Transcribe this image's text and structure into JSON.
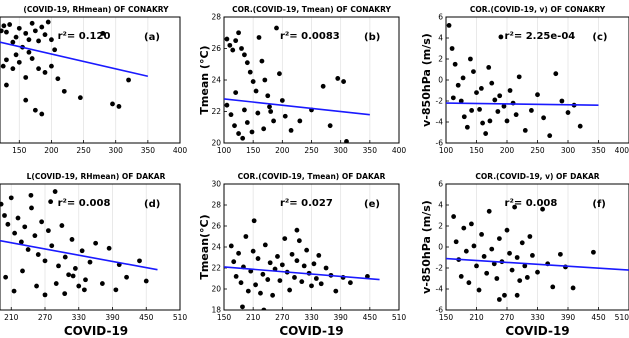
{
  "colors": {
    "points": "#000000",
    "fit_line": "#1a1aff",
    "frame": "#000000"
  },
  "chart_data": [
    {
      "id": "a",
      "type": "scatter",
      "panel_label": "(a)",
      "title": "(COVID-19, RHmean) OF CONAKRY",
      "annotation": "r²= 0.120",
      "xlabel": "",
      "ylabel": "",
      "xlim": [
        120,
        400
      ],
      "ylim": [
        0,
        10
      ],
      "xticks": [
        150,
        200,
        250,
        300,
        350,
        400
      ],
      "yticks": [],
      "points": [
        [
          122,
          8.9
        ],
        [
          126,
          9.3
        ],
        [
          130,
          8.8
        ],
        [
          135,
          9.4
        ],
        [
          140,
          8.0
        ],
        [
          145,
          8.4
        ],
        [
          150,
          9.1
        ],
        [
          155,
          7.6
        ],
        [
          160,
          8.7
        ],
        [
          165,
          8.2
        ],
        [
          170,
          9.5
        ],
        [
          175,
          8.9
        ],
        [
          180,
          8.1
        ],
        [
          185,
          9.2
        ],
        [
          190,
          8.6
        ],
        [
          195,
          9.6
        ],
        [
          200,
          8.2
        ],
        [
          205,
          7.4
        ],
        [
          125,
          6.1
        ],
        [
          130,
          6.6
        ],
        [
          140,
          5.9
        ],
        [
          150,
          6.4
        ],
        [
          160,
          5.2
        ],
        [
          170,
          6.7
        ],
        [
          180,
          5.9
        ],
        [
          190,
          5.6
        ],
        [
          200,
          6.1
        ],
        [
          210,
          5.1
        ],
        [
          220,
          4.1
        ],
        [
          245,
          3.6
        ],
        [
          280,
          8.7
        ],
        [
          295,
          3.1
        ],
        [
          305,
          2.9
        ],
        [
          160,
          3.4
        ],
        [
          185,
          2.3
        ],
        [
          175,
          2.6
        ],
        [
          320,
          5.0
        ],
        [
          130,
          4.6
        ],
        [
          145,
          7.0
        ],
        [
          165,
          7.2
        ]
      ],
      "fit_line": [
        [
          120,
          8.0
        ],
        [
          350,
          5.3
        ]
      ]
    },
    {
      "id": "b",
      "type": "scatter",
      "panel_label": "(b)",
      "title": "COR.(COVID-19, Tmean) OF CONAKRY",
      "annotation": "r²= 0.0083",
      "xlabel": "",
      "ylabel": "Tmean (°C)",
      "xlim": [
        100,
        400
      ],
      "ylim": [
        20,
        28
      ],
      "xticks": [
        100,
        150,
        200,
        250,
        300,
        350,
        400
      ],
      "yticks": [
        20,
        22,
        24,
        26,
        28
      ],
      "points": [
        [
          105,
          26.6
        ],
        [
          110,
          26.2
        ],
        [
          115,
          25.9
        ],
        [
          120,
          26.5
        ],
        [
          125,
          27.0
        ],
        [
          130,
          26.0
        ],
        [
          135,
          25.6
        ],
        [
          140,
          25.1
        ],
        [
          145,
          24.5
        ],
        [
          150,
          23.9
        ],
        [
          155,
          23.3
        ],
        [
          160,
          26.7
        ],
        [
          165,
          25.2
        ],
        [
          170,
          24.0
        ],
        [
          175,
          23.0
        ],
        [
          180,
          22.0
        ],
        [
          185,
          21.4
        ],
        [
          190,
          27.3
        ],
        [
          195,
          24.4
        ],
        [
          200,
          22.7
        ],
        [
          105,
          22.4
        ],
        [
          112,
          21.8
        ],
        [
          118,
          21.1
        ],
        [
          125,
          20.6
        ],
        [
          132,
          20.3
        ],
        [
          140,
          21.3
        ],
        [
          148,
          20.7
        ],
        [
          158,
          21.9
        ],
        [
          168,
          20.9
        ],
        [
          178,
          22.3
        ],
        [
          205,
          21.7
        ],
        [
          215,
          20.8
        ],
        [
          230,
          21.4
        ],
        [
          250,
          22.1
        ],
        [
          270,
          23.6
        ],
        [
          282,
          21.1
        ],
        [
          295,
          24.1
        ],
        [
          305,
          23.9
        ],
        [
          310,
          20.1
        ],
        [
          120,
          23.2
        ],
        [
          135,
          22.1
        ]
      ],
      "fit_line": [
        [
          100,
          22.8
        ],
        [
          350,
          21.8
        ]
      ]
    },
    {
      "id": "c",
      "type": "scatter",
      "panel_label": "(c)",
      "title": "COR.(COVID-19, v) OF CONAKRY",
      "annotation": "r²= 2.25e-04",
      "xlabel": "",
      "ylabel": "v-850hPa (m/s)",
      "xlim": [
        100,
        400
      ],
      "ylim": [
        -6,
        6
      ],
      "xticks": [
        100,
        150,
        200,
        250,
        300,
        350,
        400
      ],
      "yticks": [
        -6,
        -4,
        -2,
        0,
        2,
        4,
        6
      ],
      "points": [
        [
          105,
          5.2
        ],
        [
          110,
          3.0
        ],
        [
          115,
          1.5
        ],
        [
          120,
          -0.5
        ],
        [
          125,
          -2.0
        ],
        [
          130,
          -3.5
        ],
        [
          135,
          -4.5
        ],
        [
          140,
          2.0
        ],
        [
          145,
          0.8
        ],
        [
          150,
          -1.2
        ],
        [
          155,
          -2.8
        ],
        [
          160,
          -4.1
        ],
        [
          165,
          -5.1
        ],
        [
          170,
          1.2
        ],
        [
          175,
          -0.3
        ],
        [
          180,
          -1.9
        ],
        [
          185,
          -3.0
        ],
        [
          190,
          4.1
        ],
        [
          195,
          -2.5
        ],
        [
          200,
          -3.9
        ],
        [
          205,
          -1.0
        ],
        [
          210,
          -2.2
        ],
        [
          215,
          -3.3
        ],
        [
          220,
          0.3
        ],
        [
          230,
          -4.8
        ],
        [
          240,
          -2.9
        ],
        [
          250,
          -1.4
        ],
        [
          260,
          -3.6
        ],
        [
          270,
          -5.3
        ],
        [
          280,
          0.6
        ],
        [
          290,
          -2.0
        ],
        [
          300,
          -3.1
        ],
        [
          310,
          -2.4
        ],
        [
          320,
          -4.4
        ],
        [
          112,
          -1.7
        ],
        [
          128,
          0.2
        ],
        [
          142,
          -2.9
        ],
        [
          158,
          -0.8
        ],
        [
          172,
          -3.9
        ],
        [
          188,
          -1.5
        ]
      ],
      "fit_line": [
        [
          100,
          -2.2
        ],
        [
          350,
          -2.4
        ]
      ]
    },
    {
      "id": "d",
      "type": "scatter",
      "panel_label": "(d)",
      "title": "L(COVID-19, RHmean) OF DAKAR",
      "annotation": "r²= 0.008",
      "xlabel": "COVID-19",
      "ylabel": "",
      "xlim": [
        190,
        510
      ],
      "ylim": [
        0,
        10
      ],
      "xticks": [
        210,
        270,
        330,
        390,
        450,
        510
      ],
      "yticks": [],
      "points": [
        [
          192,
          8.4
        ],
        [
          198,
          7.5
        ],
        [
          204,
          6.8
        ],
        [
          210,
          8.9
        ],
        [
          216,
          6.1
        ],
        [
          222,
          7.3
        ],
        [
          228,
          5.4
        ],
        [
          234,
          6.6
        ],
        [
          240,
          4.8
        ],
        [
          246,
          8.1
        ],
        [
          252,
          5.9
        ],
        [
          258,
          4.4
        ],
        [
          264,
          7.0
        ],
        [
          270,
          3.9
        ],
        [
          276,
          6.3
        ],
        [
          282,
          5.1
        ],
        [
          288,
          9.4
        ],
        [
          294,
          3.5
        ],
        [
          300,
          6.7
        ],
        [
          306,
          4.2
        ],
        [
          312,
          2.8
        ],
        [
          318,
          5.6
        ],
        [
          324,
          3.3
        ],
        [
          330,
          1.9
        ],
        [
          336,
          4.7
        ],
        [
          342,
          2.4
        ],
        [
          350,
          3.8
        ],
        [
          360,
          5.3
        ],
        [
          372,
          2.1
        ],
        [
          384,
          4.9
        ],
        [
          396,
          1.6
        ],
        [
          402,
          3.6
        ],
        [
          415,
          2.6
        ],
        [
          438,
          3.9
        ],
        [
          450,
          2.3
        ],
        [
          200,
          2.6
        ],
        [
          215,
          1.5
        ],
        [
          230,
          3.1
        ],
        [
          255,
          1.9
        ],
        [
          270,
          1.2
        ],
        [
          290,
          2.1
        ],
        [
          305,
          1.3
        ],
        [
          320,
          2.7
        ],
        [
          340,
          1.6
        ],
        [
          280,
          8.6
        ],
        [
          245,
          9.1
        ]
      ],
      "fit_line": [
        [
          190,
          5.5
        ],
        [
          470,
          3.2
        ]
      ]
    },
    {
      "id": "e",
      "type": "scatter",
      "panel_label": "(e)",
      "title": "COR.(COVID-19, Tmean) OF DAKAR",
      "annotation": "r²= 0.027",
      "xlabel": "COVID-19",
      "ylabel": "Tmean(°C)",
      "xlim": [
        150,
        510
      ],
      "ylim": [
        18,
        30
      ],
      "xticks": [
        150,
        210,
        270,
        330,
        390,
        450,
        510
      ],
      "yticks": [
        18,
        20,
        22,
        24,
        26,
        28,
        30
      ],
      "points": [
        [
          165,
          24.1
        ],
        [
          170,
          22.6
        ],
        [
          175,
          21.2
        ],
        [
          180,
          23.4
        ],
        [
          185,
          20.6
        ],
        [
          190,
          22.1
        ],
        [
          195,
          25.0
        ],
        [
          200,
          19.8
        ],
        [
          205,
          21.7
        ],
        [
          210,
          23.6
        ],
        [
          215,
          20.4
        ],
        [
          220,
          22.9
        ],
        [
          225,
          19.6
        ],
        [
          230,
          21.4
        ],
        [
          235,
          24.2
        ],
        [
          240,
          20.9
        ],
        [
          245,
          22.5
        ],
        [
          250,
          19.4
        ],
        [
          255,
          21.9
        ],
        [
          260,
          23.1
        ],
        [
          265,
          20.8
        ],
        [
          270,
          22.3
        ],
        [
          275,
          24.8
        ],
        [
          280,
          21.6
        ],
        [
          285,
          19.9
        ],
        [
          290,
          23.3
        ],
        [
          295,
          21.1
        ],
        [
          300,
          22.7
        ],
        [
          305,
          24.6
        ],
        [
          310,
          20.7
        ],
        [
          315,
          22.2
        ],
        [
          320,
          23.7
        ],
        [
          325,
          21.5
        ],
        [
          330,
          20.3
        ],
        [
          335,
          22.4
        ],
        [
          340,
          21.0
        ],
        [
          345,
          23.2
        ],
        [
          350,
          20.5
        ],
        [
          360,
          22.0
        ],
        [
          370,
          21.3
        ],
        [
          380,
          19.8
        ],
        [
          395,
          21.1
        ],
        [
          410,
          20.6
        ],
        [
          445,
          21.2
        ],
        [
          212,
          26.5
        ],
        [
          188,
          18.3
        ],
        [
          232,
          18.0
        ],
        [
          300,
          25.6
        ]
      ],
      "fit_line": [
        [
          150,
          22.1
        ],
        [
          470,
          20.9
        ]
      ]
    },
    {
      "id": "f",
      "type": "scatter",
      "panel_label": "(f)",
      "title": "COR.(COVID-19, v) OF DAKAR",
      "annotation": "r²= 0.008",
      "xlabel": "COVID-19",
      "ylabel": "v-850hPa (m/s)",
      "xlim": [
        150,
        510
      ],
      "ylim": [
        -6,
        6
      ],
      "xticks": [
        150,
        210,
        270,
        330,
        390,
        450,
        510
      ],
      "yticks": [
        -6,
        -4,
        -2,
        0,
        2,
        4,
        6
      ],
      "points": [
        [
          165,
          2.9
        ],
        [
          170,
          0.5
        ],
        [
          175,
          -1.2
        ],
        [
          180,
          -2.8
        ],
        [
          185,
          1.8
        ],
        [
          190,
          -0.4
        ],
        [
          195,
          -3.4
        ],
        [
          200,
          2.2
        ],
        [
          205,
          0.1
        ],
        [
          210,
          -1.8
        ],
        [
          215,
          -4.1
        ],
        [
          220,
          1.2
        ],
        [
          225,
          -0.9
        ],
        [
          230,
          -2.5
        ],
        [
          235,
          3.4
        ],
        [
          240,
          -0.2
        ],
        [
          245,
          -1.6
        ],
        [
          250,
          -3.0
        ],
        [
          255,
          0.8
        ],
        [
          260,
          -1.4
        ],
        [
          265,
          -4.6
        ],
        [
          270,
          1.6
        ],
        [
          275,
          -0.6
        ],
        [
          280,
          -2.2
        ],
        [
          285,
          3.8
        ],
        [
          290,
          -1.0
        ],
        [
          295,
          -3.2
        ],
        [
          300,
          0.4
        ],
        [
          305,
          -1.8
        ],
        [
          310,
          -2.9
        ],
        [
          315,
          1.0
        ],
        [
          320,
          -0.8
        ],
        [
          330,
          -2.4
        ],
        [
          340,
          3.6
        ],
        [
          350,
          -1.6
        ],
        [
          360,
          -3.8
        ],
        [
          375,
          -0.7
        ],
        [
          385,
          -1.9
        ],
        [
          400,
          -3.9
        ],
        [
          440,
          -0.5
        ],
        [
          255,
          -5.0
        ],
        [
          290,
          -4.6
        ]
      ],
      "fit_line": [
        [
          150,
          -1.1
        ],
        [
          510,
          -2.2
        ]
      ]
    }
  ]
}
